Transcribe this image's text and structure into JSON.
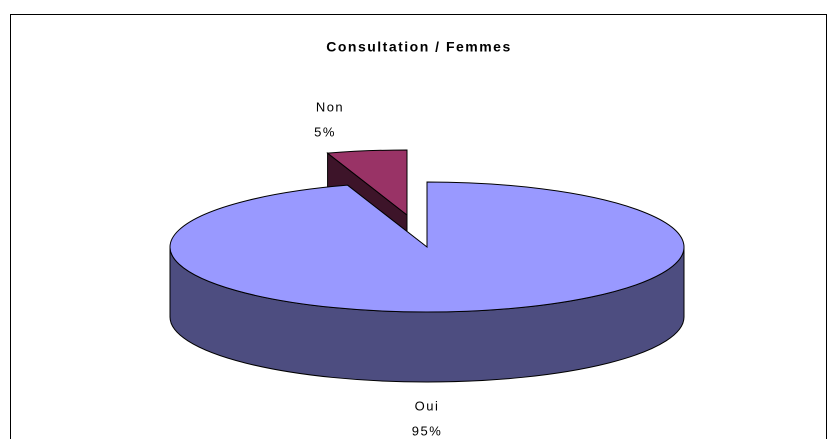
{
  "chart_data": {
    "type": "pie",
    "title": "Consultation / Femmes",
    "categories": [
      "Oui",
      "Non"
    ],
    "values": [
      95,
      5
    ],
    "value_labels": [
      "95%",
      "5%"
    ],
    "colors": [
      "#9999ff",
      "#993366"
    ]
  }
}
